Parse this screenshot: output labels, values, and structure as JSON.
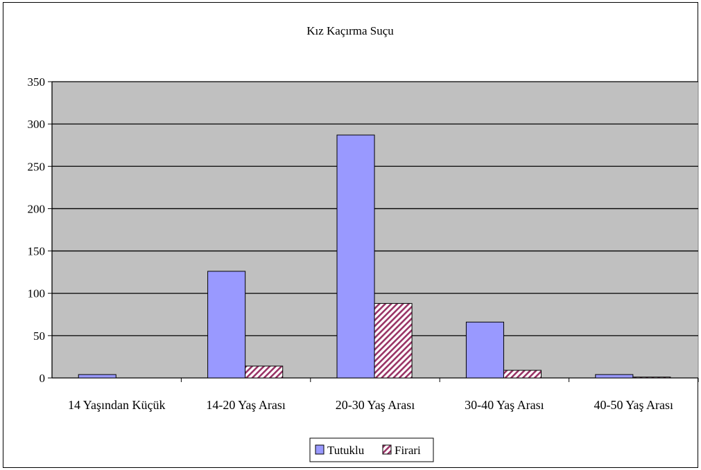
{
  "chart_data": {
    "type": "bar",
    "title": "Kız Kaçırma Suçu",
    "categories": [
      "14 Yaşından Küçük",
      "14-20 Yaş Arası",
      "20-30 Yaş Arası",
      "30-40 Yaş Arası",
      "40-50 Yaş Arası"
    ],
    "series": [
      {
        "name": "Tutuklu",
        "values": [
          4,
          126,
          287,
          66,
          4
        ],
        "color": "#9999ff",
        "pattern": "solid"
      },
      {
        "name": "Firari",
        "values": [
          0,
          14,
          88,
          9,
          1
        ],
        "color": "#993366",
        "pattern": "diagonal-hatch"
      }
    ],
    "ylim": [
      0,
      350
    ],
    "yticks": [
      0,
      50,
      100,
      150,
      200,
      250,
      300,
      350
    ],
    "xlabel": "",
    "ylabel": "",
    "grid": true,
    "plot_background": "#c0c0c0",
    "legend_position": "bottom"
  }
}
